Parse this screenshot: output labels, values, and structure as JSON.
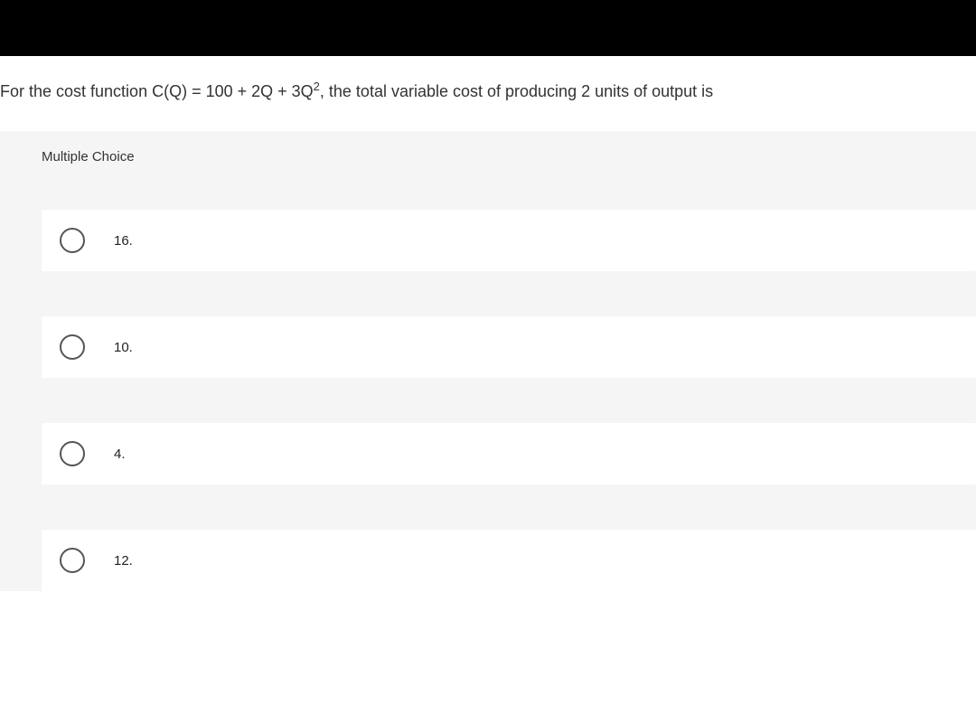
{
  "question": {
    "prefix": "For the cost function C(Q) = 100 + 2Q + 3Q",
    "exponent": "2",
    "suffix": ", the total variable cost of producing 2 units of output is"
  },
  "section_label": "Multiple Choice",
  "options": [
    {
      "label": "16."
    },
    {
      "label": "10."
    },
    {
      "label": "4."
    },
    {
      "label": "12."
    }
  ],
  "colors": {
    "top_bar": "#000000",
    "background": "#ffffff",
    "section_bg": "#f5f5f5",
    "text": "#333333",
    "radio_border": "#555555"
  }
}
